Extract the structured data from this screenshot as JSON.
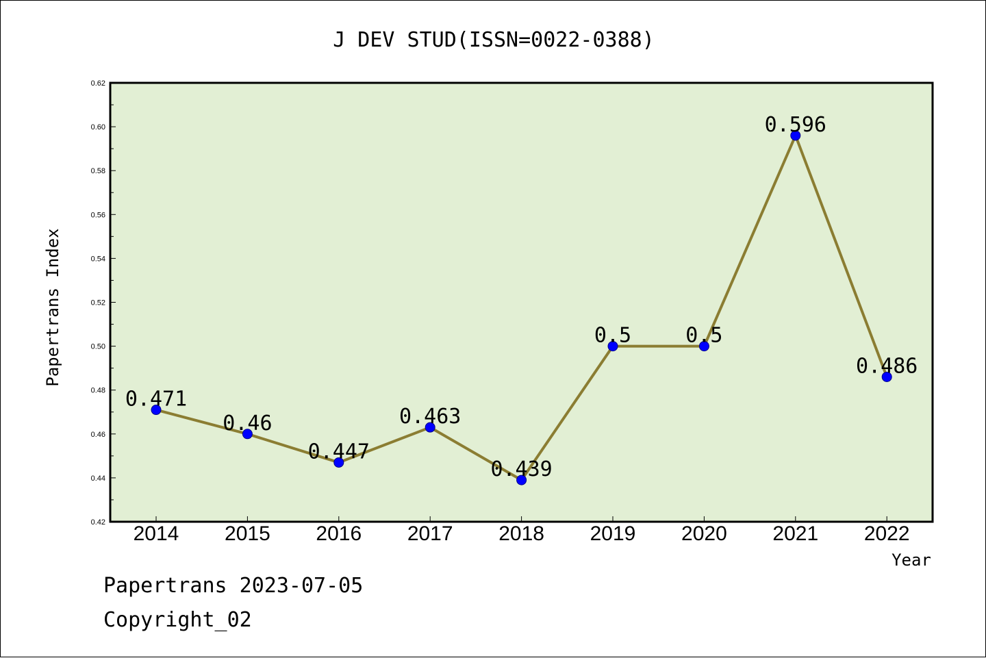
{
  "chart_data": {
    "type": "line",
    "title": "J DEV STUD(ISSN=0022-0388)",
    "xlabel": "Year",
    "ylabel": "Papertrans Index",
    "categories": [
      "2014",
      "2015",
      "2016",
      "2017",
      "2018",
      "2019",
      "2020",
      "2021",
      "2022"
    ],
    "values": [
      0.471,
      0.46,
      0.447,
      0.463,
      0.439,
      0.5,
      0.5,
      0.596,
      0.486
    ],
    "data_labels": [
      "0.471",
      "0.46",
      "0.447",
      "0.463",
      "0.439",
      "0.5",
      "0.5",
      "0.596",
      "0.486"
    ],
    "ylim": [
      0.42,
      0.62
    ],
    "yticks": [
      "0.42",
      "0.44",
      "0.46",
      "0.48",
      "0.50",
      "0.52",
      "0.54",
      "0.56",
      "0.58",
      "0.60",
      "0.62"
    ],
    "grid": false,
    "colors": {
      "plot_background": "#e2efd4",
      "line": "#8b7d32",
      "marker": "#0000ff"
    }
  },
  "footer": {
    "line1": "Papertrans 2023-07-05",
    "line2": "Copyright_02"
  }
}
